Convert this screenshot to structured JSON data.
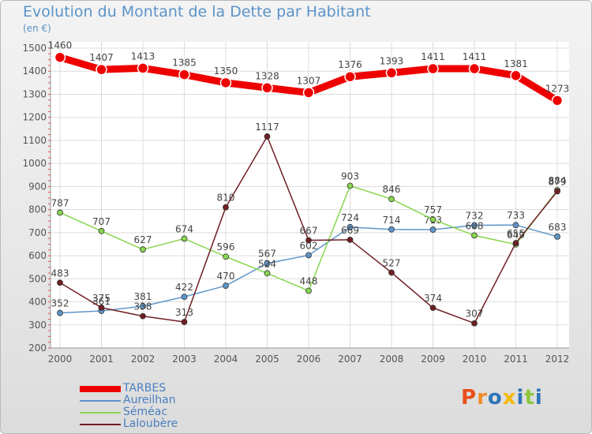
{
  "title": "Evolution du Montant de la Dette par Habitant",
  "unit": "(en €)",
  "brand": "Proxiti",
  "chart_data": {
    "type": "line",
    "x": [
      "2000",
      "2001",
      "2002",
      "2003",
      "2004",
      "2005",
      "2006",
      "2007",
      "2008",
      "2009",
      "2010",
      "2011",
      "2012"
    ],
    "ylim": [
      200,
      1500
    ],
    "yticks": [
      200,
      300,
      400,
      500,
      600,
      700,
      800,
      900,
      1000,
      1100,
      1200,
      1300,
      1400,
      1500
    ],
    "grid": true,
    "legend_position": "bottom-left",
    "series": [
      {
        "name": "TARBES",
        "color": "#ee0000",
        "values": [
          1460,
          1407,
          1413,
          1385,
          1350,
          1328,
          1307,
          1376,
          1393,
          1411,
          1411,
          1381,
          1273
        ]
      },
      {
        "name": "Aureilhan",
        "color": "#5e95c9",
        "values": [
          352,
          361,
          381,
          422,
          470,
          567,
          602,
          724,
          714,
          713,
          732,
          733,
          683
        ]
      },
      {
        "name": "Séméac",
        "color": "#88d64f",
        "values": [
          787,
          707,
          627,
          674,
          596,
          524,
          448,
          903,
          846,
          757,
          688,
          649,
          884
        ]
      },
      {
        "name": "Laloubère",
        "color": "#6f1f24",
        "values": [
          483,
          375,
          338,
          313,
          810,
          1117,
          667,
          669,
          527,
          374,
          307,
          655,
          879
        ]
      }
    ]
  },
  "colors": {
    "plot_background": "#ffffff",
    "grid": "#dcdcdc",
    "axis": "#999999",
    "label_text": "#555555",
    "title_text": "#5a93c9",
    "brand_letters": [
      "#e94e1b",
      "#f28c28",
      "#2e75b6",
      "#f6b800",
      "#2e75b6",
      "#8cc63f",
      "#2e75b6"
    ]
  }
}
